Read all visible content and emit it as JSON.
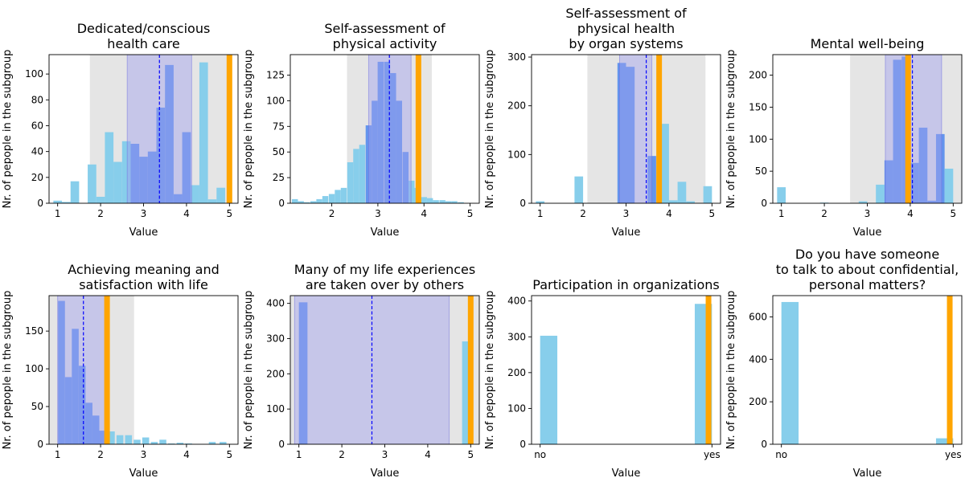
{
  "figure": {
    "xlabel": "Value",
    "ylabel": "Nr. of pepople in the subgroup",
    "colors": {
      "hist": "#87CEEB",
      "highlight": "#6495ED",
      "band_outer": "#E5E5E5",
      "band_inner": "#A0A0EE",
      "marker": "#FFA500",
      "mean_line": "#0000FF"
    }
  },
  "chart_data": [
    {
      "type": "bar",
      "title": [
        "Dedicated/conscious",
        "health care"
      ],
      "xlim": [
        0.8,
        5.2
      ],
      "ylim": [
        0,
        115
      ],
      "xticks": [
        1,
        2,
        3,
        4,
        5
      ],
      "xticklabels": [
        "1",
        "2",
        "3",
        "4",
        "5"
      ],
      "yticks": [
        0,
        20,
        40,
        60,
        80,
        100
      ],
      "bin_width": 0.2,
      "bins": [
        {
          "x": 1.0,
          "y": 2
        },
        {
          "x": 1.2,
          "y": 1
        },
        {
          "x": 1.4,
          "y": 17
        },
        {
          "x": 1.8,
          "y": 30
        },
        {
          "x": 2.0,
          "y": 5
        },
        {
          "x": 2.2,
          "y": 55
        },
        {
          "x": 2.4,
          "y": 32
        },
        {
          "x": 2.6,
          "y": 48
        },
        {
          "x": 2.8,
          "y": 46
        },
        {
          "x": 3.0,
          "y": 36
        },
        {
          "x": 3.2,
          "y": 40
        },
        {
          "x": 3.4,
          "y": 74
        },
        {
          "x": 3.6,
          "y": 107
        },
        {
          "x": 3.8,
          "y": 7
        },
        {
          "x": 4.0,
          "y": 55
        },
        {
          "x": 4.2,
          "y": 14
        },
        {
          "x": 4.4,
          "y": 109
        },
        {
          "x": 4.6,
          "y": 3
        },
        {
          "x": 4.8,
          "y": 12
        }
      ],
      "outer_band": [
        1.75,
        4.95
      ],
      "inner_band": [
        2.62,
        4.12
      ],
      "mean": 3.37,
      "marker": 5.0
    },
    {
      "type": "bar",
      "title": [
        "Self-assessment of",
        "physical activity"
      ],
      "xlim": [
        1.1,
        5.2
      ],
      "ylim": [
        0,
        145
      ],
      "xticks": [
        2,
        3,
        4,
        5
      ],
      "xticklabels": [
        "2",
        "3",
        "4",
        "5"
      ],
      "yticks": [
        0,
        25,
        50,
        75,
        100,
        125
      ],
      "bin_width": 0.13,
      "bins": [
        {
          "x": 1.2,
          "y": 4
        },
        {
          "x": 1.33,
          "y": 2
        },
        {
          "x": 1.46,
          "y": 1
        },
        {
          "x": 1.6,
          "y": 2
        },
        {
          "x": 1.73,
          "y": 4
        },
        {
          "x": 1.86,
          "y": 7
        },
        {
          "x": 2.0,
          "y": 9
        },
        {
          "x": 2.13,
          "y": 13
        },
        {
          "x": 2.26,
          "y": 15
        },
        {
          "x": 2.4,
          "y": 40
        },
        {
          "x": 2.53,
          "y": 53
        },
        {
          "x": 2.66,
          "y": 57
        },
        {
          "x": 2.8,
          "y": 76
        },
        {
          "x": 2.93,
          "y": 100
        },
        {
          "x": 3.06,
          "y": 138
        },
        {
          "x": 3.2,
          "y": 138
        },
        {
          "x": 3.33,
          "y": 127
        },
        {
          "x": 3.46,
          "y": 100
        },
        {
          "x": 3.6,
          "y": 50
        },
        {
          "x": 3.73,
          "y": 22
        },
        {
          "x": 3.86,
          "y": 15
        },
        {
          "x": 4.0,
          "y": 6
        },
        {
          "x": 4.13,
          "y": 5
        },
        {
          "x": 4.26,
          "y": 3
        },
        {
          "x": 4.4,
          "y": 3
        },
        {
          "x": 4.53,
          "y": 2
        },
        {
          "x": 4.66,
          "y": 2
        },
        {
          "x": 4.8,
          "y": 1
        }
      ],
      "outer_band": [
        2.33,
        4.17
      ],
      "inner_band": [
        2.8,
        3.72
      ],
      "mean": 3.25,
      "marker": 3.88
    },
    {
      "type": "bar",
      "title": [
        "Self-assessment of",
        "physical health",
        "by organ systems"
      ],
      "xlim": [
        0.8,
        5.2
      ],
      "ylim": [
        0,
        305
      ],
      "xticks": [
        1,
        2,
        3,
        4,
        5
      ],
      "xticklabels": [
        "1",
        "2",
        "3",
        "4",
        "5"
      ],
      "yticks": [
        0,
        100,
        200,
        300
      ],
      "bin_width": 0.2,
      "bins": [
        {
          "x": 1.0,
          "y": 4
        },
        {
          "x": 1.9,
          "y": 55
        },
        {
          "x": 2.9,
          "y": 288
        },
        {
          "x": 3.1,
          "y": 280
        },
        {
          "x": 3.6,
          "y": 97
        },
        {
          "x": 3.9,
          "y": 163
        },
        {
          "x": 4.1,
          "y": 6
        },
        {
          "x": 4.3,
          "y": 44
        },
        {
          "x": 4.5,
          "y": 4
        },
        {
          "x": 4.9,
          "y": 35
        }
      ],
      "outer_band": [
        2.1,
        4.85
      ],
      "inner_band": [
        2.85,
        3.6
      ],
      "mean": 3.47,
      "marker": 3.77
    },
    {
      "type": "bar",
      "title": [
        "Mental well-being"
      ],
      "xlim": [
        0.8,
        5.2
      ],
      "ylim": [
        0,
        232
      ],
      "xticks": [
        1,
        2,
        3,
        4,
        5
      ],
      "xticklabels": [
        "1",
        "2",
        "3",
        "4",
        "5"
      ],
      "yticks": [
        0,
        50,
        100,
        150,
        200
      ],
      "bin_width": 0.2,
      "bins": [
        {
          "x": 1.0,
          "y": 25
        },
        {
          "x": 2.0,
          "y": 1
        },
        {
          "x": 2.9,
          "y": 3
        },
        {
          "x": 3.3,
          "y": 29
        },
        {
          "x": 3.5,
          "y": 67
        },
        {
          "x": 3.7,
          "y": 224
        },
        {
          "x": 3.9,
          "y": 229
        },
        {
          "x": 4.1,
          "y": 63
        },
        {
          "x": 4.3,
          "y": 118
        },
        {
          "x": 4.5,
          "y": 4
        },
        {
          "x": 4.7,
          "y": 108
        },
        {
          "x": 4.9,
          "y": 54
        }
      ],
      "outer_band": [
        2.6,
        5.2
      ],
      "inner_band": [
        3.42,
        4.73
      ],
      "mean": 4.05,
      "marker": 3.95
    },
    {
      "type": "bar",
      "title": [
        "Achieving meaning and",
        "satisfaction with life"
      ],
      "xlim": [
        0.8,
        5.2
      ],
      "ylim": [
        0,
        197
      ],
      "xticks": [
        1,
        2,
        3,
        4,
        5
      ],
      "xticklabels": [
        "1",
        "2",
        "3",
        "4",
        "5"
      ],
      "yticks": [
        0,
        50,
        100,
        150
      ],
      "bin_width": 0.16,
      "bins": [
        {
          "x": 1.09,
          "y": 190
        },
        {
          "x": 1.25,
          "y": 89
        },
        {
          "x": 1.41,
          "y": 153
        },
        {
          "x": 1.57,
          "y": 104
        },
        {
          "x": 1.73,
          "y": 55
        },
        {
          "x": 1.89,
          "y": 38
        },
        {
          "x": 2.05,
          "y": 18
        },
        {
          "x": 2.25,
          "y": 17
        },
        {
          "x": 2.45,
          "y": 12
        },
        {
          "x": 2.65,
          "y": 12
        },
        {
          "x": 2.85,
          "y": 6
        },
        {
          "x": 3.05,
          "y": 9
        },
        {
          "x": 3.25,
          "y": 3
        },
        {
          "x": 3.45,
          "y": 6
        },
        {
          "x": 3.65,
          "y": 1
        },
        {
          "x": 3.85,
          "y": 2
        },
        {
          "x": 4.05,
          "y": 1
        },
        {
          "x": 4.6,
          "y": 3
        },
        {
          "x": 4.85,
          "y": 3
        }
      ],
      "outer_band": [
        0.8,
        2.78
      ],
      "inner_band": [
        1.0,
        2.1
      ],
      "mean": 1.6,
      "marker": 2.15
    },
    {
      "type": "bar",
      "title": [
        "Many of my life experiences",
        "are taken over by others"
      ],
      "xlim": [
        0.8,
        5.2
      ],
      "ylim": [
        0,
        422
      ],
      "xticks": [
        1,
        2,
        3,
        4,
        5
      ],
      "xticklabels": [
        "1",
        "2",
        "3",
        "4",
        "5"
      ],
      "yticks": [
        0,
        100,
        200,
        300,
        400
      ],
      "bin_width": 0.2,
      "bins": [
        {
          "x": 1.1,
          "y": 403
        },
        {
          "x": 4.9,
          "y": 292
        }
      ],
      "outer_band": [
        0.8,
        5.2
      ],
      "inner_band": [
        0.9,
        4.5
      ],
      "mean": 2.7,
      "marker": 5.0
    },
    {
      "type": "bar",
      "title": [
        "Participation in organizations"
      ],
      "xlim": [
        -0.05,
        1.05
      ],
      "ylim": [
        0,
        415
      ],
      "xticks": [
        0,
        1
      ],
      "xticklabels": [
        "no",
        "yes"
      ],
      "yticks": [
        0,
        100,
        200,
        300,
        400
      ],
      "bin_width": 0.1,
      "bins": [
        {
          "x": 0.05,
          "y": 303
        },
        {
          "x": 0.95,
          "y": 392
        }
      ],
      "outer_band": null,
      "inner_band": null,
      "mean": null,
      "marker": 0.98
    },
    {
      "type": "bar",
      "title": [
        "Do you have someone",
        "to talk to about confidential,",
        "personal matters?"
      ],
      "xlim": [
        -0.05,
        1.05
      ],
      "ylim": [
        0,
        700
      ],
      "xticks": [
        0,
        1
      ],
      "xticklabels": [
        "no",
        "yes"
      ],
      "yticks": [
        0,
        200,
        400,
        600
      ],
      "bin_width": 0.1,
      "bins": [
        {
          "x": 0.05,
          "y": 670
        },
        {
          "x": 0.95,
          "y": 28
        }
      ],
      "outer_band": null,
      "inner_band": null,
      "mean": null,
      "marker": 0.98
    }
  ]
}
